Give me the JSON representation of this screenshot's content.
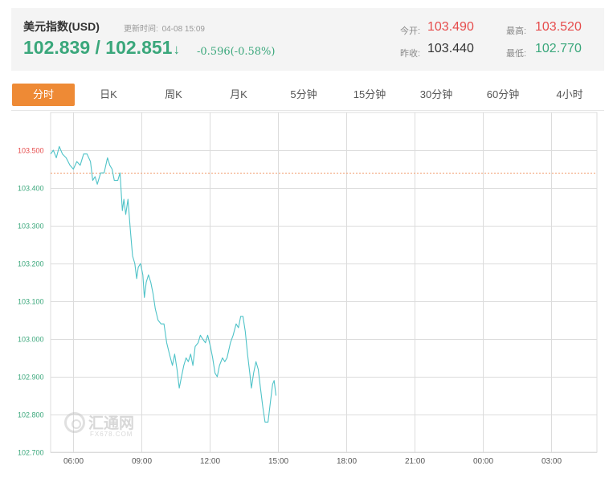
{
  "quote": {
    "name": "美元指数(USD)",
    "update_label": "更新时间:",
    "update_time": "04-08 15:09",
    "price": "102.839 / 102.851",
    "price_arrow": "↓",
    "change": "-0.596(-0.58%)",
    "open_label": "今开:",
    "open_value": "103.490",
    "prev_close_label": "昨收:",
    "prev_close_value": "103.440",
    "high_label": "最高:",
    "high_value": "103.520",
    "low_label": "最低:",
    "low_value": "102.770"
  },
  "tabs": [
    "分时",
    "日K",
    "周K",
    "月K",
    "5分钟",
    "15分钟",
    "30分钟",
    "60分钟",
    "4小时"
  ],
  "active_tab": "分时",
  "colors": {
    "up": "#e64c4c",
    "down": "#3aa77b",
    "line": "#4fc3c8",
    "accent": "#ee8a35",
    "grid": "#dcdcdc"
  },
  "watermark": {
    "name": "汇通网",
    "url": "FX678.COM"
  },
  "chart_data": {
    "type": "line",
    "x_unit": "hours since 05:00",
    "xticks": [
      {
        "label": "06:00",
        "x": 1
      },
      {
        "label": "09:00",
        "x": 4
      },
      {
        "label": "12:00",
        "x": 7
      },
      {
        "label": "15:00",
        "x": 10
      },
      {
        "label": "18:00",
        "x": 13
      },
      {
        "label": "21:00",
        "x": 16
      },
      {
        "label": "00:00",
        "x": 19
      },
      {
        "label": "03:00",
        "x": 22
      }
    ],
    "xlim": [
      0,
      24
    ],
    "ylim": [
      102.7,
      103.6
    ],
    "yticks": [
      103.5,
      103.4,
      103.3,
      103.2,
      103.1,
      103.0,
      102.9,
      102.8,
      102.7
    ],
    "ytick_labels": [
      "103.500",
      "103.400",
      "103.300",
      "103.200",
      "103.100",
      "103.000",
      "102.900",
      "102.800",
      "102.700"
    ],
    "reference": {
      "label": "昨收",
      "value": 103.44
    },
    "series": [
      {
        "points": [
          [
            0.0,
            103.49
          ],
          [
            0.12,
            103.5
          ],
          [
            0.25,
            103.48
          ],
          [
            0.38,
            103.51
          ],
          [
            0.52,
            103.49
          ],
          [
            0.68,
            103.48
          ],
          [
            0.85,
            103.46
          ],
          [
            1.0,
            103.45
          ],
          [
            1.15,
            103.47
          ],
          [
            1.3,
            103.46
          ],
          [
            1.45,
            103.49
          ],
          [
            1.6,
            103.49
          ],
          [
            1.75,
            103.47
          ],
          [
            1.85,
            103.42
          ],
          [
            1.95,
            103.43
          ],
          [
            2.05,
            103.41
          ],
          [
            2.2,
            103.44
          ],
          [
            2.35,
            103.44
          ],
          [
            2.5,
            103.48
          ],
          [
            2.6,
            103.46
          ],
          [
            2.7,
            103.45
          ],
          [
            2.8,
            103.42
          ],
          [
            2.95,
            103.42
          ],
          [
            3.05,
            103.44
          ],
          [
            3.15,
            103.34
          ],
          [
            3.22,
            103.37
          ],
          [
            3.3,
            103.33
          ],
          [
            3.4,
            103.37
          ],
          [
            3.5,
            103.29
          ],
          [
            3.6,
            103.22
          ],
          [
            3.7,
            103.2
          ],
          [
            3.78,
            103.16
          ],
          [
            3.85,
            103.19
          ],
          [
            3.95,
            103.2
          ],
          [
            4.05,
            103.17
          ],
          [
            4.12,
            103.11
          ],
          [
            4.2,
            103.15
          ],
          [
            4.3,
            103.17
          ],
          [
            4.4,
            103.15
          ],
          [
            4.5,
            103.12
          ],
          [
            4.6,
            103.08
          ],
          [
            4.72,
            103.05
          ],
          [
            4.85,
            103.04
          ],
          [
            4.98,
            103.04
          ],
          [
            5.1,
            102.99
          ],
          [
            5.22,
            102.96
          ],
          [
            5.35,
            102.93
          ],
          [
            5.45,
            102.96
          ],
          [
            5.55,
            102.92
          ],
          [
            5.65,
            102.87
          ],
          [
            5.75,
            102.9
          ],
          [
            5.85,
            102.93
          ],
          [
            5.95,
            102.95
          ],
          [
            6.05,
            102.94
          ],
          [
            6.15,
            102.96
          ],
          [
            6.25,
            102.93
          ],
          [
            6.35,
            102.98
          ],
          [
            6.48,
            102.99
          ],
          [
            6.58,
            103.01
          ],
          [
            6.68,
            103.0
          ],
          [
            6.8,
            102.99
          ],
          [
            6.9,
            103.01
          ],
          [
            7.02,
            102.98
          ],
          [
            7.12,
            102.95
          ],
          [
            7.22,
            102.91
          ],
          [
            7.32,
            102.9
          ],
          [
            7.42,
            102.93
          ],
          [
            7.55,
            102.95
          ],
          [
            7.65,
            102.94
          ],
          [
            7.75,
            102.95
          ],
          [
            7.9,
            102.99
          ],
          [
            8.02,
            103.01
          ],
          [
            8.15,
            103.04
          ],
          [
            8.25,
            103.03
          ],
          [
            8.35,
            103.06
          ],
          [
            8.45,
            103.06
          ],
          [
            8.55,
            103.02
          ],
          [
            8.65,
            102.96
          ],
          [
            8.75,
            102.91
          ],
          [
            8.82,
            102.87
          ],
          [
            8.92,
            102.91
          ],
          [
            9.02,
            102.94
          ],
          [
            9.12,
            102.92
          ],
          [
            9.22,
            102.87
          ],
          [
            9.32,
            102.82
          ],
          [
            9.42,
            102.78
          ],
          [
            9.55,
            102.78
          ],
          [
            9.65,
            102.83
          ],
          [
            9.75,
            102.88
          ],
          [
            9.82,
            102.89
          ],
          [
            9.9,
            102.85
          ]
        ]
      }
    ]
  }
}
